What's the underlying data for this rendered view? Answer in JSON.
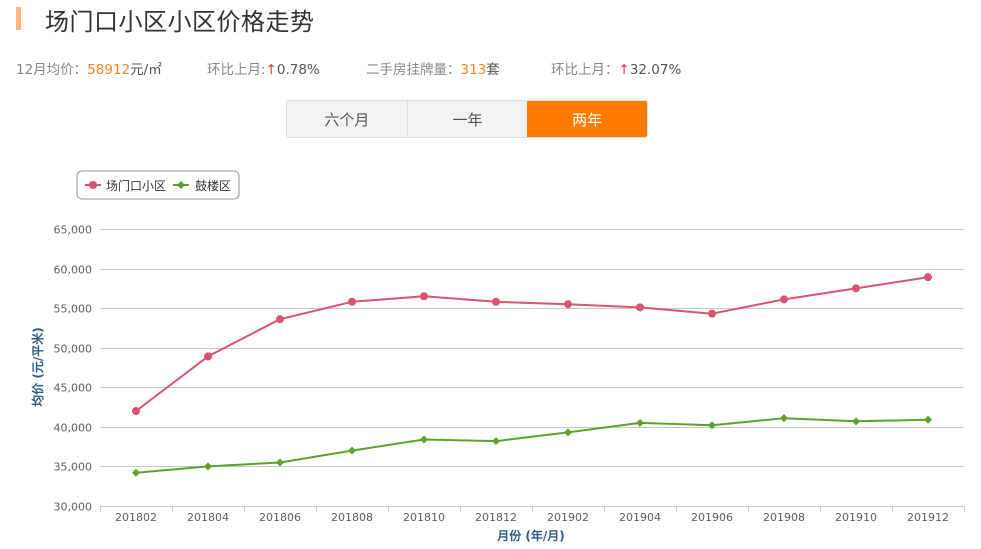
{
  "header": {
    "title": "场门口小区小区价格走势",
    "accent_color": "#fbb57f"
  },
  "stats": {
    "avg_price_label": "12月均价：",
    "avg_price_value": "58912",
    "avg_price_unit": "元/㎡",
    "mom_label_1": "环比上月:",
    "mom_arrow_1": "↑",
    "mom_value_1": "0.78%",
    "listings_label": "二手房挂牌量：",
    "listings_value": "313",
    "listings_unit": "套",
    "mom_label_2": "环比上月：",
    "mom_arrow_2": "↑",
    "mom_value_2": "32.07%"
  },
  "tabs": [
    {
      "label": "六个月",
      "active": false
    },
    {
      "label": "一年",
      "active": false
    },
    {
      "label": "两年",
      "active": true
    }
  ],
  "legend": [
    {
      "name": "场门口小区",
      "color": "#d9546e",
      "marker": "circle"
    },
    {
      "name": "鼓楼区",
      "color": "#5ba32b",
      "marker": "diamond"
    }
  ],
  "chart_data": {
    "type": "line",
    "title": "",
    "xlabel": "月份 (年/月)",
    "ylabel": "均价 (元/平米)",
    "categories": [
      "201802",
      "201804",
      "201806",
      "201808",
      "201810",
      "201812",
      "201902",
      "201904",
      "201906",
      "201908",
      "201910",
      "201912"
    ],
    "series": [
      {
        "name": "场门口小区",
        "color": "#d9546e",
        "values": [
          42000,
          48900,
          53600,
          55800,
          56500,
          55800,
          55500,
          55100,
          54300,
          56100,
          57500,
          58912
        ]
      },
      {
        "name": "鼓楼区",
        "color": "#5ba32b",
        "values": [
          34200,
          35000,
          35500,
          37000,
          38400,
          38200,
          39300,
          40500,
          40200,
          41100,
          40700,
          40900
        ]
      }
    ],
    "ylim": [
      30000,
      65000
    ],
    "yticks": [
      30000,
      35000,
      40000,
      45000,
      50000,
      55000,
      60000,
      65000
    ],
    "ytick_labels": [
      "30,000",
      "35,000",
      "40,000",
      "45,000",
      "50,000",
      "55,000",
      "60,000",
      "65,000"
    ],
    "grid": true,
    "legend_position": "top-left"
  }
}
